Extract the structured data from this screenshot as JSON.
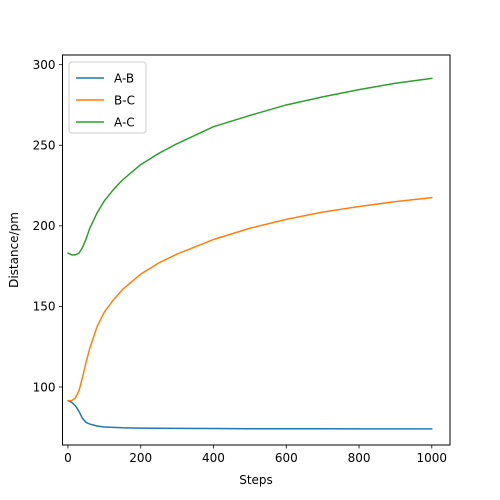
{
  "chart_data": {
    "type": "line",
    "title": "",
    "xlabel": "Steps",
    "ylabel": "Distance/pm",
    "xlim": [
      -15,
      1050
    ],
    "ylim": [
      64,
      306
    ],
    "xticks": [
      0,
      200,
      400,
      600,
      800,
      1000
    ],
    "yticks": [
      100,
      150,
      200,
      250,
      300
    ],
    "grid": false,
    "legend_position": "top-left",
    "series": [
      {
        "name": "A-B",
        "color": "#1f77b4",
        "x": [
          0,
          10,
          20,
          30,
          40,
          50,
          60,
          80,
          100,
          150,
          200,
          300,
          400,
          500,
          600,
          700,
          800,
          900,
          1000
        ],
        "y": [
          91.5,
          90.5,
          88.5,
          85.0,
          80.5,
          78.0,
          77.0,
          75.8,
          75.2,
          74.7,
          74.5,
          74.3,
          74.2,
          74.1,
          74.1,
          74.1,
          74.0,
          74.0,
          74.0
        ]
      },
      {
        "name": "B-C",
        "color": "#ff7f0e",
        "x": [
          0,
          10,
          20,
          30,
          40,
          50,
          60,
          80,
          100,
          125,
          150,
          200,
          250,
          300,
          400,
          500,
          600,
          700,
          800,
          900,
          1000
        ],
        "y": [
          91.5,
          91.5,
          93.0,
          97.5,
          106.0,
          115.5,
          124.0,
          137.5,
          146.5,
          154.0,
          160.5,
          170.0,
          177.0,
          182.5,
          191.5,
          198.5,
          204.0,
          208.5,
          212.0,
          215.0,
          217.5
        ]
      },
      {
        "name": "A-C",
        "color": "#2ca02c",
        "x": [
          0,
          10,
          20,
          30,
          40,
          50,
          60,
          80,
          100,
          125,
          150,
          200,
          250,
          300,
          400,
          500,
          600,
          700,
          800,
          900,
          1000
        ],
        "y": [
          183.0,
          182.0,
          182.0,
          183.0,
          186.5,
          192.0,
          198.5,
          208.0,
          215.5,
          222.5,
          228.5,
          238.0,
          245.0,
          251.0,
          261.5,
          268.5,
          275.0,
          280.0,
          284.5,
          288.5,
          291.5
        ]
      }
    ]
  }
}
